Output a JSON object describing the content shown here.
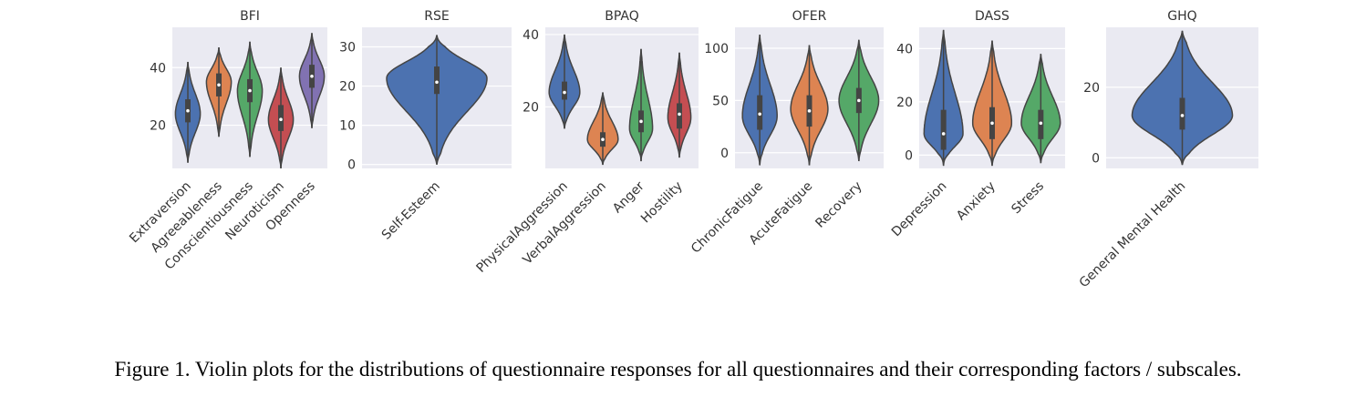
{
  "caption": "Figure 1. Violin plots for the distributions of questionnaire responses for all questionnaires and their corresponding factors / subscales.",
  "style": {
    "panel_bg": "#eaeaf2",
    "grid": "#ffffff",
    "text": "#333333",
    "outline": "#444444"
  },
  "chart_data": [
    {
      "type": "violin",
      "title": "BFI",
      "ylim": [
        5,
        54
      ],
      "yticks": [
        20,
        40
      ],
      "categories": [
        "Extraversion",
        "Agreeableness",
        "Conscientiousness",
        "Neuroticism",
        "Openness"
      ],
      "colors": [
        "#4c72b0",
        "#dd8452",
        "#55a868",
        "#c44e52",
        "#8172b2"
      ],
      "series": [
        {
          "min": 7,
          "max": 42,
          "q1": 21,
          "median": 25,
          "q3": 29,
          "mode": 24,
          "maxw": 0.8
        },
        {
          "min": 16,
          "max": 47,
          "q1": 30,
          "median": 34,
          "q3": 38,
          "mode": 35,
          "maxw": 0.8
        },
        {
          "min": 9,
          "max": 49,
          "q1": 28,
          "median": 32,
          "q3": 36,
          "mode": 32,
          "maxw": 0.8
        },
        {
          "min": 5,
          "max": 40,
          "q1": 18,
          "median": 22,
          "q3": 27,
          "mode": 22,
          "maxw": 0.8
        },
        {
          "min": 19,
          "max": 52,
          "q1": 33,
          "median": 37,
          "q3": 41,
          "mode": 37,
          "maxw": 0.8
        }
      ]
    },
    {
      "type": "violin",
      "title": "RSE",
      "ylim": [
        -1,
        35
      ],
      "yticks": [
        0,
        10,
        20,
        30
      ],
      "categories": [
        "Self-Esteem"
      ],
      "colors": [
        "#4c72b0"
      ],
      "series": [
        {
          "min": 0,
          "max": 33,
          "q1": 18,
          "median": 21,
          "q3": 25,
          "mode": 22,
          "maxw": 0.92
        }
      ]
    },
    {
      "type": "violin",
      "title": "BPAQ",
      "ylim": [
        3,
        42
      ],
      "yticks": [
        20,
        40
      ],
      "categories": [
        "PhysicalAggression",
        "VerbalAggression",
        "Anger",
        "Hostility"
      ],
      "colors": [
        "#4c72b0",
        "#dd8452",
        "#55a868",
        "#c44e52"
      ],
      "series": [
        {
          "min": 14,
          "max": 40,
          "q1": 22,
          "median": 24,
          "q3": 27,
          "mode": 24,
          "maxw": 0.8
        },
        {
          "min": 4,
          "max": 24,
          "q1": 9,
          "median": 11,
          "q3": 13,
          "mode": 11,
          "maxw": 0.8
        },
        {
          "min": 5,
          "max": 36,
          "q1": 13,
          "median": 16,
          "q3": 19,
          "mode": 14,
          "maxw": 0.6
        },
        {
          "min": 6,
          "max": 35,
          "q1": 14,
          "median": 18,
          "q3": 21,
          "mode": 17,
          "maxw": 0.6
        }
      ]
    },
    {
      "type": "violin",
      "title": "OFER",
      "ylim": [
        -15,
        120
      ],
      "yticks": [
        0,
        50,
        100
      ],
      "categories": [
        "ChronicFatigue",
        "AcuteFatigue",
        "Recovery"
      ],
      "colors": [
        "#4c72b0",
        "#dd8452",
        "#55a868"
      ],
      "series": [
        {
          "min": -12,
          "max": 113,
          "q1": 22,
          "median": 37,
          "q3": 55,
          "mode": 35,
          "maxw": 0.7
        },
        {
          "min": -12,
          "max": 103,
          "q1": 25,
          "median": 40,
          "q3": 55,
          "mode": 42,
          "maxw": 0.75
        },
        {
          "min": -8,
          "max": 108,
          "q1": 38,
          "median": 50,
          "q3": 62,
          "mode": 50,
          "maxw": 0.8
        }
      ]
    },
    {
      "type": "violin",
      "title": "DASS",
      "ylim": [
        -5,
        48
      ],
      "yticks": [
        0,
        20,
        40
      ],
      "categories": [
        "Depression",
        "Anxiety",
        "Stress"
      ],
      "colors": [
        "#4c72b0",
        "#dd8452",
        "#55a868"
      ],
      "series": [
        {
          "min": -4,
          "max": 47,
          "q1": 2,
          "median": 8,
          "q3": 17,
          "mode": 8,
          "maxw": 0.8
        },
        {
          "min": -4,
          "max": 43,
          "q1": 6,
          "median": 12,
          "q3": 18,
          "mode": 12,
          "maxw": 0.8
        },
        {
          "min": -3,
          "max": 38,
          "q1": 6,
          "median": 12,
          "q3": 17,
          "mode": 12,
          "maxw": 0.8
        }
      ]
    },
    {
      "type": "violin",
      "title": "GHQ",
      "ylim": [
        -3,
        37
      ],
      "yticks": [
        0,
        20
      ],
      "categories": [
        "General Mental Health"
      ],
      "colors": [
        "#4c72b0"
      ],
      "series": [
        {
          "min": -2,
          "max": 36,
          "q1": 8,
          "median": 12,
          "q3": 17,
          "mode": 12,
          "maxw": 0.9
        }
      ]
    }
  ]
}
